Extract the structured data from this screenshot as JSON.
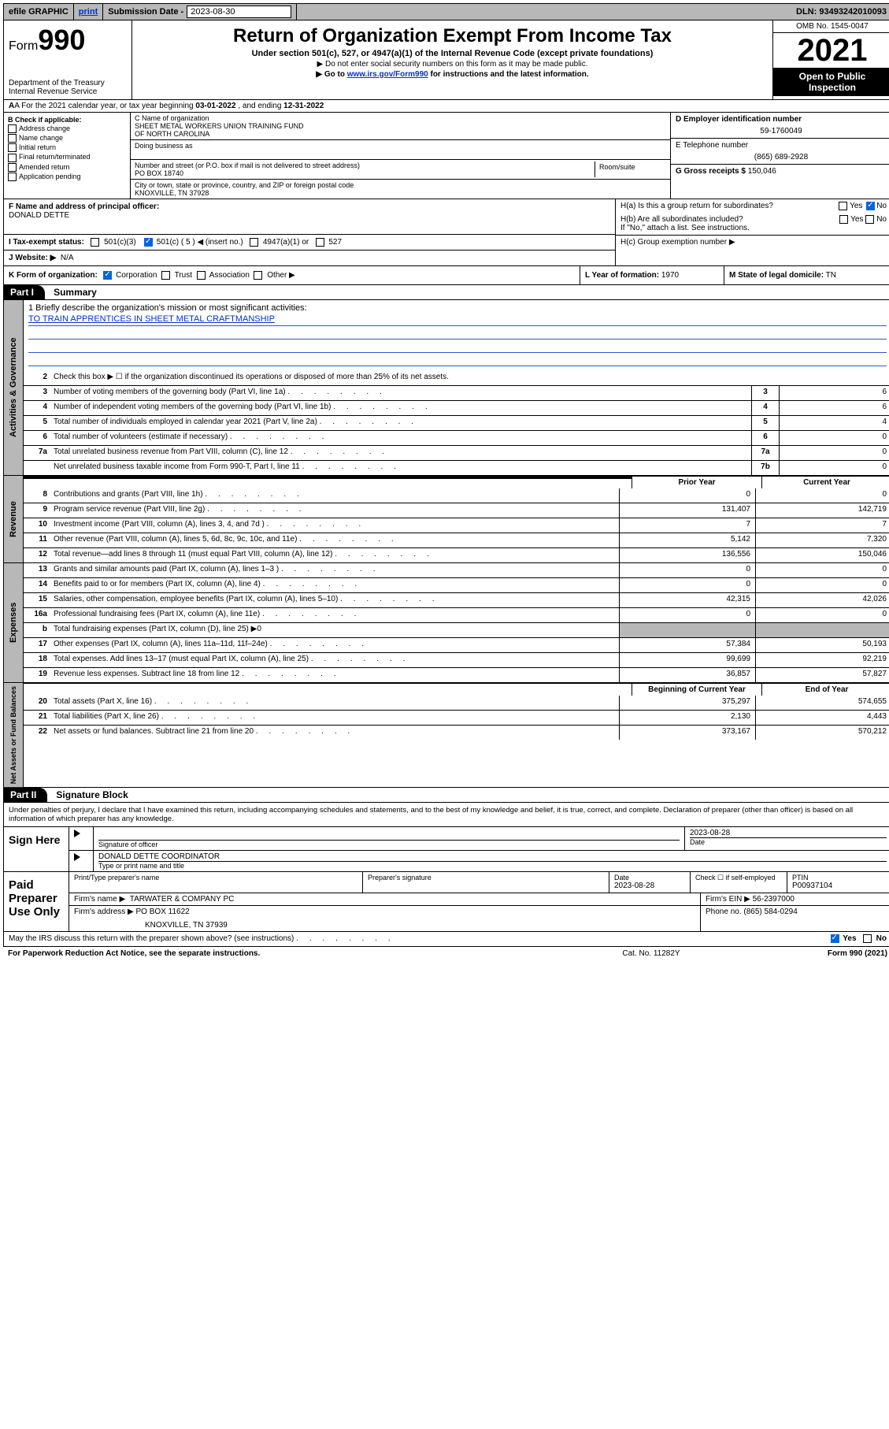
{
  "topbar": {
    "efile": "efile GRAPHIC",
    "print": "print",
    "sub_label": "Submission Date -",
    "sub_date": "2023-08-30",
    "dln": "DLN: 93493242010093"
  },
  "header": {
    "form_word": "Form",
    "form_num": "990",
    "dept": "Department of the Treasury",
    "irs": "Internal Revenue Service",
    "title": "Return of Organization Exempt From Income Tax",
    "sub": "Under section 501(c), 527, or 4947(a)(1) of the Internal Revenue Code (except private foundations)",
    "note1": "▶ Do not enter social security numbers on this form as it may be made public.",
    "note2_pre": "▶ Go to ",
    "note2_link": "www.irs.gov/Form990",
    "note2_post": " for instructions and the latest information.",
    "omb": "OMB No. 1545-0047",
    "year": "2021",
    "open": "Open to Public Inspection"
  },
  "rowA": {
    "text_pre": "A For the 2021 calendar year, or tax year beginning ",
    "begin": "03-01-2022",
    "mid": " , and ending ",
    "end": "12-31-2022"
  },
  "B": {
    "label": "B Check if applicable:",
    "items": [
      "Address change",
      "Name change",
      "Initial return",
      "Final return/terminated",
      "Amended return",
      "Application pending"
    ]
  },
  "C": {
    "name_label": "C Name of organization",
    "name1": "SHEET METAL WORKERS UNION TRAINING FUND",
    "name2": "OF NORTH CAROLINA",
    "dba_label": "Doing business as",
    "addr_label": "Number and street (or P.O. box if mail is not delivered to street address)",
    "room_label": "Room/suite",
    "addr": "PO BOX 18740",
    "city_label": "City or town, state or province, country, and ZIP or foreign postal code",
    "city": "KNOXVILLE, TN  37928"
  },
  "D": {
    "label": "D Employer identification number",
    "val": "59-1760049"
  },
  "E": {
    "label": "E Telephone number",
    "val": "(865) 689-2928"
  },
  "G": {
    "label": "G Gross receipts $",
    "val": "150,046"
  },
  "F": {
    "label": "F  Name and address of principal officer:",
    "name": "DONALD DETTE"
  },
  "H": {
    "a": "H(a)  Is this a group return for subordinates?",
    "b": "H(b)  Are all subordinates included?",
    "b_note": "If \"No,\" attach a list. See instructions.",
    "c": "H(c)  Group exemption number ▶",
    "yes": "Yes",
    "no": "No"
  },
  "I": {
    "label": "I  Tax-exempt status:",
    "opts": [
      "501(c)(3)",
      "501(c) ( 5 ) ◀ (insert no.)",
      "4947(a)(1) or",
      "527"
    ]
  },
  "J": {
    "label": "J  Website: ▶",
    "val": "N/A"
  },
  "K": {
    "label": "K Form of organization:",
    "opts": [
      "Corporation",
      "Trust",
      "Association",
      "Other ▶"
    ]
  },
  "L": {
    "label": "L Year of formation:",
    "val": "1970"
  },
  "M": {
    "label": "M State of legal domicile:",
    "val": "TN"
  },
  "partI": {
    "tag": "Part I",
    "title": "Summary"
  },
  "mission": {
    "q": "1  Briefly describe the organization's mission or most significant activities:",
    "text": "TO TRAIN APPRENTICES IN SHEET METAL CRAFTMANSHIP"
  },
  "lines_gov": [
    {
      "n": "2",
      "d": "Check this box ▶ ☐  if the organization discontinued its operations or disposed of more than 25% of its net assets.",
      "noval": true
    },
    {
      "n": "3",
      "d": "Number of voting members of the governing body (Part VI, line 1a)",
      "box": "3",
      "v": "6"
    },
    {
      "n": "4",
      "d": "Number of independent voting members of the governing body (Part VI, line 1b)",
      "box": "4",
      "v": "6"
    },
    {
      "n": "5",
      "d": "Total number of individuals employed in calendar year 2021 (Part V, line 2a)",
      "box": "5",
      "v": "4"
    },
    {
      "n": "6",
      "d": "Total number of volunteers (estimate if necessary)",
      "box": "6",
      "v": "0"
    },
    {
      "n": "7a",
      "d": "Total unrelated business revenue from Part VIII, column (C), line 12",
      "box": "7a",
      "v": "0"
    },
    {
      "n": "",
      "d": "Net unrelated business taxable income from Form 990-T, Part I, line 11",
      "box": "7b",
      "v": "0"
    }
  ],
  "col_py": "Prior Year",
  "col_cy": "Current Year",
  "lines_rev": [
    {
      "n": "8",
      "d": "Contributions and grants (Part VIII, line 1h)",
      "py": "0",
      "cy": "0"
    },
    {
      "n": "9",
      "d": "Program service revenue (Part VIII, line 2g)",
      "py": "131,407",
      "cy": "142,719"
    },
    {
      "n": "10",
      "d": "Investment income (Part VIII, column (A), lines 3, 4, and 7d )",
      "py": "7",
      "cy": "7"
    },
    {
      "n": "11",
      "d": "Other revenue (Part VIII, column (A), lines 5, 6d, 8c, 9c, 10c, and 11e)",
      "py": "5,142",
      "cy": "7,320"
    },
    {
      "n": "12",
      "d": "Total revenue—add lines 8 through 11 (must equal Part VIII, column (A), line 12)",
      "py": "136,556",
      "cy": "150,046"
    }
  ],
  "lines_exp": [
    {
      "n": "13",
      "d": "Grants and similar amounts paid (Part IX, column (A), lines 1–3 )",
      "py": "0",
      "cy": "0"
    },
    {
      "n": "14",
      "d": "Benefits paid to or for members (Part IX, column (A), line 4)",
      "py": "0",
      "cy": "0"
    },
    {
      "n": "15",
      "d": "Salaries, other compensation, employee benefits (Part IX, column (A), lines 5–10)",
      "py": "42,315",
      "cy": "42,026"
    },
    {
      "n": "16a",
      "d": "Professional fundraising fees (Part IX, column (A), line 11e)",
      "py": "0",
      "cy": "0"
    },
    {
      "n": "b",
      "d": "Total fundraising expenses (Part IX, column (D), line 25) ▶0",
      "gray": true
    },
    {
      "n": "17",
      "d": "Other expenses (Part IX, column (A), lines 11a–11d, 11f–24e)",
      "py": "57,384",
      "cy": "50,193"
    },
    {
      "n": "18",
      "d": "Total expenses. Add lines 13–17 (must equal Part IX, column (A), line 25)",
      "py": "99,699",
      "cy": "92,219"
    },
    {
      "n": "19",
      "d": "Revenue less expenses. Subtract line 18 from line 12",
      "py": "36,857",
      "cy": "57,827"
    }
  ],
  "col_boy": "Beginning of Current Year",
  "col_eoy": "End of Year",
  "lines_net": [
    {
      "n": "20",
      "d": "Total assets (Part X, line 16)",
      "py": "375,297",
      "cy": "574,655"
    },
    {
      "n": "21",
      "d": "Total liabilities (Part X, line 26)",
      "py": "2,130",
      "cy": "4,443"
    },
    {
      "n": "22",
      "d": "Net assets or fund balances. Subtract line 21 from line 20",
      "py": "373,167",
      "cy": "570,212"
    }
  ],
  "sides": {
    "gov": "Activities & Governance",
    "rev": "Revenue",
    "exp": "Expenses",
    "net": "Net Assets or Fund Balances"
  },
  "partII": {
    "tag": "Part II",
    "title": "Signature Block"
  },
  "sig": {
    "intro": "Under penalties of perjury, I declare that I have examined this return, including accompanying schedules and statements, and to the best of my knowledge and belief, it is true, correct, and complete. Declaration of preparer (other than officer) is based on all information of which preparer has any knowledge.",
    "sign_here": "Sign Here",
    "sig_officer": "Signature of officer",
    "date_label": "Date",
    "date": "2023-08-28",
    "officer_name": "DONALD DETTE  COORDINATOR",
    "type_name": "Type or print name and title",
    "paid": "Paid Preparer Use Only",
    "pt_name_label": "Print/Type preparer's name",
    "prep_sig_label": "Preparer's signature",
    "prep_date_label": "Date",
    "prep_date": "2023-08-28",
    "check_if": "Check ☐ if self-employed",
    "ptin_label": "PTIN",
    "ptin": "P00937104",
    "firm_name_label": "Firm's name    ▶",
    "firm_name": "TARWATER & COMPANY PC",
    "firm_ein_label": "Firm's EIN ▶",
    "firm_ein": "56-2397000",
    "firm_addr_label": "Firm's address ▶",
    "firm_addr1": "PO BOX 11622",
    "firm_addr2": "KNOXVILLE, TN  37939",
    "phone_label": "Phone no.",
    "phone": "(865) 584-0294"
  },
  "discuss": {
    "q": "May the IRS discuss this return with the preparer shown above? (see instructions)",
    "yes": "Yes",
    "no": "No"
  },
  "footer": {
    "pra": "For Paperwork Reduction Act Notice, see the separate instructions.",
    "cat": "Cat. No. 11282Y",
    "form": "Form 990 (2021)"
  }
}
